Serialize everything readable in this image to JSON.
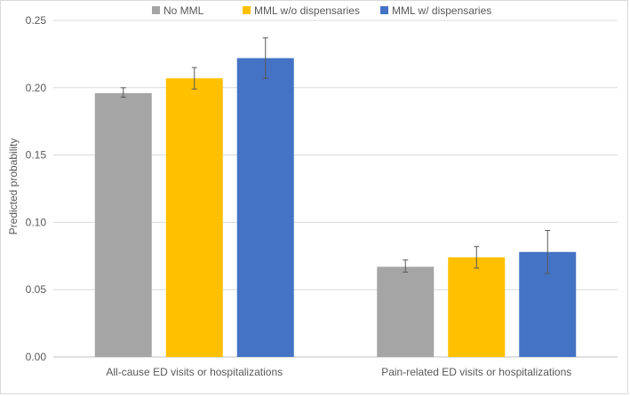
{
  "chart_data": {
    "type": "bar",
    "title": "",
    "xlabel": "",
    "ylabel": "Predicted probability",
    "ylim": [
      0,
      0.25
    ],
    "yticks": [
      "0.00",
      "0.05",
      "0.10",
      "0.15",
      "0.20",
      "0.25"
    ],
    "grid": true,
    "legend_position": "top-center",
    "categories": [
      "All-cause ED visits or hospitalizations",
      "Pain-related ED visits or hospitalizations"
    ],
    "series": [
      {
        "name": "No MML",
        "color": "#a5a5a5",
        "values": [
          0.196,
          0.067
        ],
        "error_low": [
          0.193,
          0.063
        ],
        "error_high": [
          0.2,
          0.072
        ]
      },
      {
        "name": "MML w/o dispensaries",
        "color": "#ffc000",
        "values": [
          0.207,
          0.074
        ],
        "error_low": [
          0.199,
          0.066
        ],
        "error_high": [
          0.215,
          0.082
        ]
      },
      {
        "name": "MML w/ dispensaries",
        "color": "#4472c4",
        "values": [
          0.222,
          0.078
        ],
        "error_low": [
          0.207,
          0.062
        ],
        "error_high": [
          0.237,
          0.094
        ]
      }
    ]
  }
}
